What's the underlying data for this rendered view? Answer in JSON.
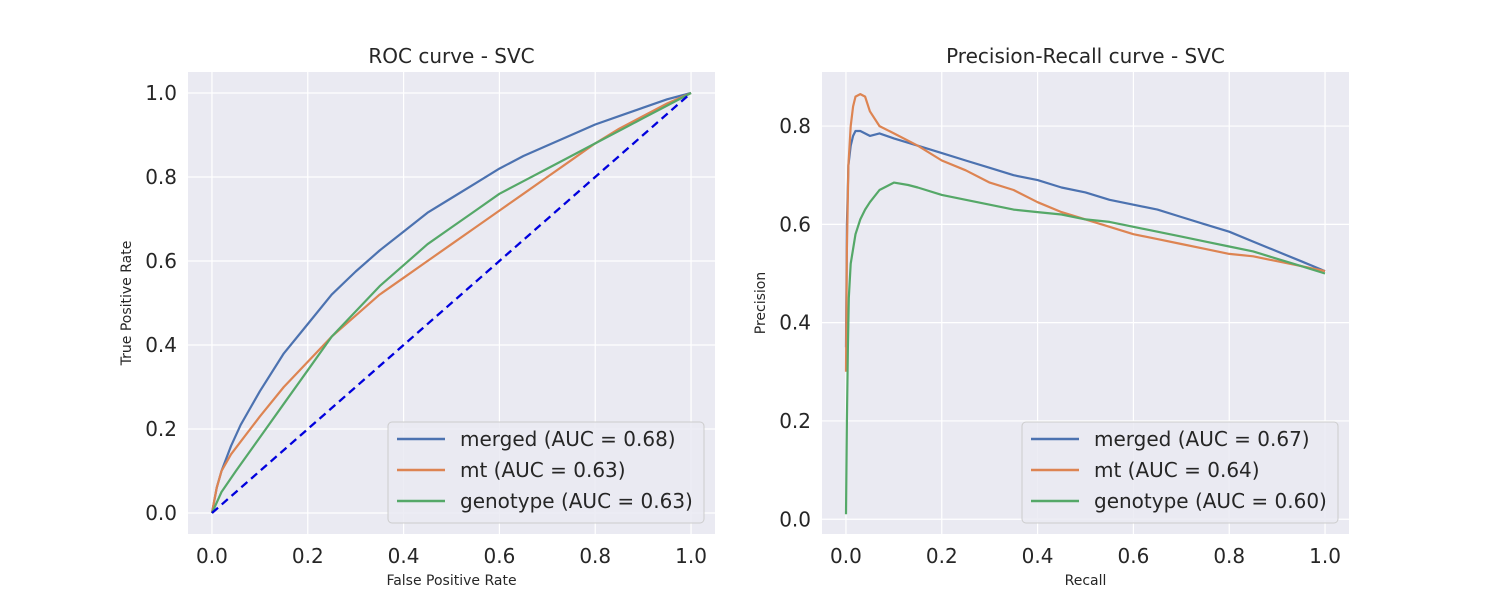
{
  "chart_data": [
    {
      "type": "line",
      "title": "ROC curve - SVC",
      "xlabel": "False Positive Rate",
      "ylabel": "True Positive Rate",
      "xlim": [
        -0.05,
        1.05
      ],
      "ylim": [
        -0.05,
        1.05
      ],
      "xticks": [
        0.0,
        0.2,
        0.4,
        0.6,
        0.8,
        1.0
      ],
      "yticks": [
        0.0,
        0.2,
        0.4,
        0.6,
        0.8,
        1.0
      ],
      "grid": true,
      "legend_position": "lower-right",
      "series": [
        {
          "name": "merged (AUC = 0.68)",
          "color": "#4c72b0",
          "x": [
            0.0,
            0.01,
            0.02,
            0.04,
            0.06,
            0.08,
            0.1,
            0.15,
            0.2,
            0.25,
            0.3,
            0.35,
            0.4,
            0.45,
            0.5,
            0.55,
            0.6,
            0.65,
            0.7,
            0.75,
            0.8,
            0.85,
            0.9,
            0.95,
            1.0
          ],
          "y": [
            0.0,
            0.06,
            0.1,
            0.16,
            0.21,
            0.25,
            0.29,
            0.38,
            0.45,
            0.52,
            0.575,
            0.625,
            0.67,
            0.715,
            0.75,
            0.785,
            0.82,
            0.85,
            0.875,
            0.9,
            0.925,
            0.945,
            0.965,
            0.985,
            1.0
          ]
        },
        {
          "name": "mt (AUC = 0.63)",
          "color": "#dd8452",
          "x": [
            0.0,
            0.005,
            0.01,
            0.02,
            0.04,
            0.06,
            0.08,
            0.1,
            0.15,
            0.2,
            0.25,
            0.3,
            0.35,
            0.4,
            0.45,
            0.5,
            0.55,
            0.6,
            0.65,
            0.7,
            0.75,
            0.8,
            0.85,
            0.9,
            0.95,
            1.0
          ],
          "y": [
            0.0,
            0.03,
            0.06,
            0.1,
            0.14,
            0.17,
            0.2,
            0.23,
            0.3,
            0.36,
            0.42,
            0.47,
            0.52,
            0.56,
            0.6,
            0.64,
            0.68,
            0.72,
            0.76,
            0.8,
            0.84,
            0.88,
            0.915,
            0.945,
            0.975,
            1.0
          ]
        },
        {
          "name": "genotype (AUC = 0.63)",
          "color": "#55a868",
          "x": [
            0.0,
            0.02,
            0.05,
            0.1,
            0.15,
            0.2,
            0.25,
            0.3,
            0.35,
            0.4,
            0.45,
            0.5,
            0.55,
            0.6,
            0.65,
            0.7,
            0.75,
            0.8,
            0.85,
            0.9,
            0.95,
            1.0
          ],
          "y": [
            0.0,
            0.05,
            0.1,
            0.18,
            0.26,
            0.34,
            0.42,
            0.48,
            0.54,
            0.59,
            0.64,
            0.68,
            0.72,
            0.76,
            0.79,
            0.82,
            0.85,
            0.88,
            0.91,
            0.94,
            0.97,
            1.0
          ]
        },
        {
          "name": "",
          "color": "#0000dd",
          "dashed": true,
          "x": [
            0.0,
            1.0
          ],
          "y": [
            0.0,
            1.0
          ]
        }
      ],
      "legend": [
        "merged (AUC = 0.68)",
        "mt (AUC = 0.63)",
        "genotype (AUC = 0.63)"
      ]
    },
    {
      "type": "line",
      "title": "Precision-Recall curve - SVC",
      "xlabel": "Recall",
      "ylabel": "Precision",
      "xlim": [
        -0.05,
        1.05
      ],
      "ylim": [
        -0.03,
        0.91
      ],
      "xticks": [
        0.0,
        0.2,
        0.4,
        0.6,
        0.8,
        1.0
      ],
      "yticks": [
        0.0,
        0.2,
        0.4,
        0.6,
        0.8
      ],
      "grid": true,
      "legend_position": "lower-right",
      "series": [
        {
          "name": "merged (AUC = 0.67)",
          "color": "#4c72b0",
          "x": [
            0.0,
            0.002,
            0.005,
            0.01,
            0.015,
            0.02,
            0.03,
            0.05,
            0.07,
            0.1,
            0.15,
            0.2,
            0.25,
            0.3,
            0.35,
            0.4,
            0.45,
            0.5,
            0.55,
            0.6,
            0.65,
            0.7,
            0.75,
            0.8,
            0.85,
            0.9,
            0.95,
            1.0
          ],
          "y": [
            0.35,
            0.6,
            0.72,
            0.76,
            0.78,
            0.79,
            0.79,
            0.78,
            0.785,
            0.775,
            0.76,
            0.745,
            0.73,
            0.715,
            0.7,
            0.69,
            0.675,
            0.665,
            0.65,
            0.64,
            0.63,
            0.615,
            0.6,
            0.585,
            0.565,
            0.545,
            0.525,
            0.505
          ]
        },
        {
          "name": "mt (AUC = 0.64)",
          "color": "#dd8452",
          "x": [
            0.0,
            0.002,
            0.005,
            0.01,
            0.015,
            0.02,
            0.03,
            0.04,
            0.05,
            0.07,
            0.1,
            0.15,
            0.2,
            0.25,
            0.3,
            0.35,
            0.4,
            0.45,
            0.5,
            0.55,
            0.6,
            0.65,
            0.7,
            0.75,
            0.8,
            0.85,
            0.9,
            0.95,
            1.0
          ],
          "y": [
            0.3,
            0.55,
            0.72,
            0.8,
            0.84,
            0.86,
            0.865,
            0.86,
            0.83,
            0.8,
            0.785,
            0.76,
            0.73,
            0.71,
            0.685,
            0.67,
            0.645,
            0.625,
            0.61,
            0.595,
            0.58,
            0.57,
            0.56,
            0.55,
            0.54,
            0.535,
            0.525,
            0.515,
            0.505
          ]
        },
        {
          "name": "genotype (AUC = 0.60)",
          "color": "#55a868",
          "x": [
            0.0,
            0.002,
            0.004,
            0.006,
            0.01,
            0.015,
            0.02,
            0.03,
            0.04,
            0.05,
            0.07,
            0.1,
            0.13,
            0.15,
            0.2,
            0.25,
            0.3,
            0.35,
            0.4,
            0.45,
            0.5,
            0.55,
            0.6,
            0.65,
            0.7,
            0.75,
            0.8,
            0.85,
            0.9,
            0.95,
            1.0
          ],
          "y": [
            0.01,
            0.2,
            0.35,
            0.45,
            0.52,
            0.55,
            0.58,
            0.61,
            0.63,
            0.645,
            0.67,
            0.685,
            0.68,
            0.675,
            0.66,
            0.65,
            0.64,
            0.63,
            0.625,
            0.62,
            0.61,
            0.605,
            0.595,
            0.585,
            0.575,
            0.565,
            0.555,
            0.545,
            0.53,
            0.515,
            0.5
          ]
        }
      ],
      "legend": [
        "merged (AUC = 0.67)",
        "mt (AUC = 0.64)",
        "genotype (AUC = 0.60)"
      ]
    }
  ]
}
